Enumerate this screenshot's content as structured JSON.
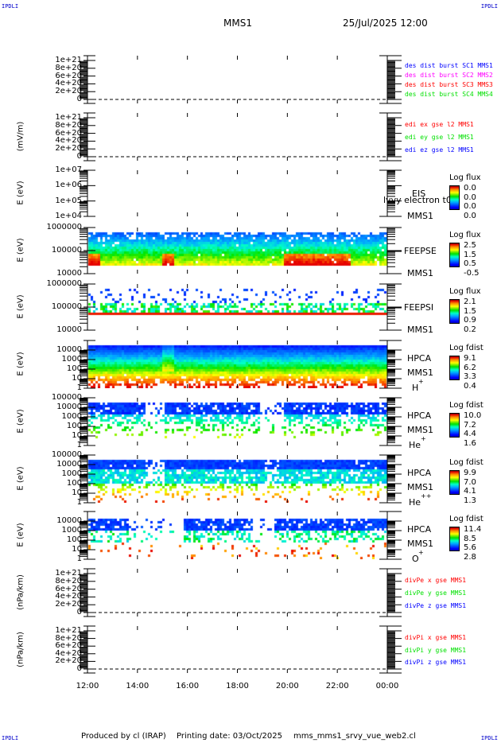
{
  "corner_label": "IPDLI",
  "header": {
    "title": "MMS1",
    "datetime": "25/Jul/2025 12:00"
  },
  "colors": {
    "blue": "#0000ff",
    "magenta": "#ff00ff",
    "red": "#ff0000",
    "green": "#00e000"
  },
  "chart_data": {
    "type": "heatmap",
    "x_ticks": [
      "12:00",
      "14:00",
      "16:00",
      "18:00",
      "20:00",
      "22:00",
      "00:00"
    ],
    "panels": [
      {
        "id": "des-dist",
        "kind": "line",
        "ylabel": "",
        "yticks": [
          "1e+21",
          "8e+20",
          "6e+20",
          "4e+20",
          "2e+20",
          "0"
        ],
        "ylim": [
          0,
          1e+21
        ],
        "legend": [
          {
            "text": "des dist burst SC1 MMS1",
            "color": "#0000ff"
          },
          {
            "text": "des dist burst SC2 MMS2",
            "color": "#ff00ff"
          },
          {
            "text": "des dist burst SC3 MMS3",
            "color": "#ff0000"
          },
          {
            "text": "des dist burst SC4 MMS4",
            "color": "#00e000"
          }
        ]
      },
      {
        "id": "edi",
        "kind": "line",
        "ylabel": "(mV/m)",
        "yticks": [
          "1e+21",
          "8e+20",
          "6e+20",
          "4e+20",
          "2e+20",
          "0"
        ],
        "ylim": [
          0,
          1e+21
        ],
        "legend": [
          {
            "text": "edi ex gse l2 MMS1",
            "color": "#ff0000"
          },
          {
            "text": "edi ey gse l2 MMS1",
            "color": "#00e000"
          },
          {
            "text": "edi ez gse l2 MMS1",
            "color": "#0000ff"
          }
        ]
      },
      {
        "id": "eis",
        "kind": "spec",
        "ylabel": "E (eV)",
        "yticks": [
          "1e+07",
          "1e+06",
          "1e+05",
          "1e+04"
        ],
        "ylim": [
          10000.0,
          10000000.0
        ],
        "labels": [
          "EIS",
          "lvvy electron t0",
          "MMS1"
        ],
        "cbar_title": "Log flux",
        "cbar_ticks": [
          "0.0",
          "0.0",
          "0.0",
          "0.0"
        ]
      },
      {
        "id": "feepse",
        "kind": "spec",
        "ylabel": "E (eV)",
        "yticks": [
          "1000000",
          "100000",
          "10000"
        ],
        "ylim": [
          10000.0,
          1000000.0
        ],
        "labels": [
          "FEEPSE",
          "MMS1"
        ],
        "cbar_title": "Log flux",
        "cbar_ticks": [
          "2.5",
          "1.5",
          "0.5",
          "-0.5"
        ]
      },
      {
        "id": "feepsi",
        "kind": "spec",
        "ylabel": "E (eV)",
        "yticks": [
          "1000000",
          "100000",
          "10000"
        ],
        "ylim": [
          10000.0,
          1000000.0
        ],
        "labels": [
          "FEEPSI",
          "MMS1"
        ],
        "cbar_title": "Log flux",
        "cbar_ticks": [
          "2.1",
          "1.5",
          "0.9",
          "0.2"
        ]
      },
      {
        "id": "hpca-h",
        "kind": "spec",
        "ylabel": "E (eV)",
        "yticks": [
          "10000",
          "1000",
          "100",
          "10",
          "1"
        ],
        "ylim": [
          1,
          40000.0
        ],
        "labels": [
          "HPCA",
          "MMS1",
          "H",
          "+"
        ],
        "cbar_title": "Log fdist",
        "cbar_ticks": [
          "9.1",
          "6.2",
          "3.3",
          "0.4"
        ]
      },
      {
        "id": "hpca-he",
        "kind": "spec",
        "ylabel": "E (eV)",
        "yticks": [
          "100000",
          "10000",
          "1000",
          "100",
          "10",
          "1"
        ],
        "ylim": [
          1,
          100000.0
        ],
        "labels": [
          "HPCA",
          "MMS1",
          "He",
          "+"
        ],
        "cbar_title": "Log fdist",
        "cbar_ticks": [
          "10.0",
          "7.2",
          "4.4",
          "1.6"
        ]
      },
      {
        "id": "hpca-hepp",
        "kind": "spec",
        "ylabel": "E (eV)",
        "yticks": [
          "100000",
          "10000",
          "1000",
          "100",
          "10",
          "1"
        ],
        "ylim": [
          1,
          100000.0
        ],
        "labels": [
          "HPCA",
          "MMS1",
          "He",
          "++"
        ],
        "cbar_title": "Log fdist",
        "cbar_ticks": [
          "9.9",
          "7.0",
          "4.1",
          "1.3"
        ]
      },
      {
        "id": "hpca-o",
        "kind": "spec",
        "ylabel": "E (eV)",
        "yticks": [
          "10000",
          "1000",
          "100",
          "10",
          "1"
        ],
        "ylim": [
          1,
          40000.0
        ],
        "labels": [
          "HPCA",
          "MMS1",
          "O",
          "+"
        ],
        "cbar_title": "Log fdist",
        "cbar_ticks": [
          "11.4",
          "8.5",
          "5.6",
          "2.8"
        ]
      },
      {
        "id": "divpe",
        "kind": "line",
        "ylabel": "(nPa/km)",
        "yticks": [
          "1e+21",
          "8e+20",
          "6e+20",
          "4e+20",
          "2e+20",
          "0"
        ],
        "ylim": [
          0,
          1e+21
        ],
        "legend": [
          {
            "text": "divPe x gse MMS1",
            "color": "#ff0000"
          },
          {
            "text": "divPe y gse MMS1",
            "color": "#00e000"
          },
          {
            "text": "divPe z gse MMS1",
            "color": "#0000ff"
          }
        ]
      },
      {
        "id": "divpi",
        "kind": "line",
        "ylabel": "(nPa/km)",
        "yticks": [
          "1e+21",
          "8e+20",
          "6e+20",
          "4e+20",
          "2e+20",
          "0"
        ],
        "ylim": [
          0,
          1e+21
        ],
        "legend": [
          {
            "text": "divPi x gse MMS1",
            "color": "#ff0000"
          },
          {
            "text": "divPi y gse MMS1",
            "color": "#00e000"
          },
          {
            "text": "divPi z gse MMS1",
            "color": "#0000ff"
          }
        ]
      }
    ]
  },
  "footer": {
    "produced": "Produced by cl (IRAP)",
    "printing": "Printing date: 03/Oct/2025",
    "script": "mms_mms1_srvy_vue_web2.cl"
  }
}
